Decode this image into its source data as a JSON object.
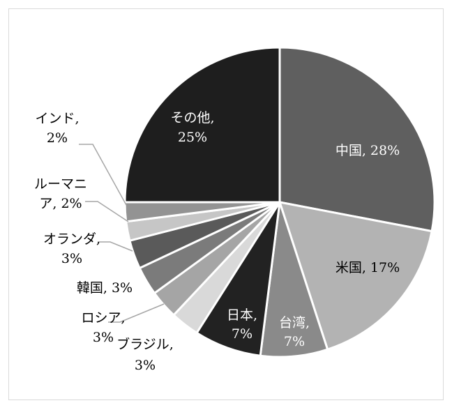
{
  "chart_data": {
    "type": "pie",
    "title": "",
    "slices": [
      {
        "name": "中国",
        "value": 28,
        "color": "#5f5f5f",
        "label_lines": [
          "中国, 28%"
        ],
        "label_color": "#ffffff"
      },
      {
        "name": "米国",
        "value": 17,
        "color": "#b3b3b3",
        "label_lines": [
          "米国, 17%"
        ],
        "label_color": "#000000"
      },
      {
        "name": "台湾",
        "value": 7,
        "color": "#8a8a8a",
        "label_lines": [
          "台湾,",
          "7%"
        ],
        "label_color": "#ffffff"
      },
      {
        "name": "日本",
        "value": 7,
        "color": "#222222",
        "label_lines": [
          "日本,",
          "7%"
        ],
        "label_color": "#ffffff"
      },
      {
        "name": "ブラジル",
        "value": 3,
        "color": "#d9d9d9",
        "label_lines": [
          "ブラジル,",
          "3%"
        ],
        "label_color": "#000000"
      },
      {
        "name": "ロシア",
        "value": 3,
        "color": "#a5a5a5",
        "label_lines": [
          "ロシア,",
          "3%"
        ],
        "label_color": "#000000"
      },
      {
        "name": "韓国",
        "value": 3,
        "color": "#7b7b7b",
        "label_lines": [
          "韓国, 3%"
        ],
        "label_color": "#000000"
      },
      {
        "name": "オランダ",
        "value": 3,
        "color": "#5a5a5a",
        "label_lines": [
          "オランダ,",
          "3%"
        ],
        "label_color": "#000000"
      },
      {
        "name": "ルーマニア",
        "value": 2,
        "color": "#c6c6c6",
        "label_lines": [
          "ルーマニ",
          "ア, 2%"
        ],
        "label_color": "#000000"
      },
      {
        "name": "インド",
        "value": 2,
        "color": "#939393",
        "label_lines": [
          "インド,",
          "2%"
        ],
        "label_color": "#000000"
      },
      {
        "name": "その他",
        "value": 25,
        "color": "#1e1e1e",
        "label_lines": [
          "その他,",
          "25%"
        ],
        "label_color": "#ffffff"
      }
    ]
  }
}
